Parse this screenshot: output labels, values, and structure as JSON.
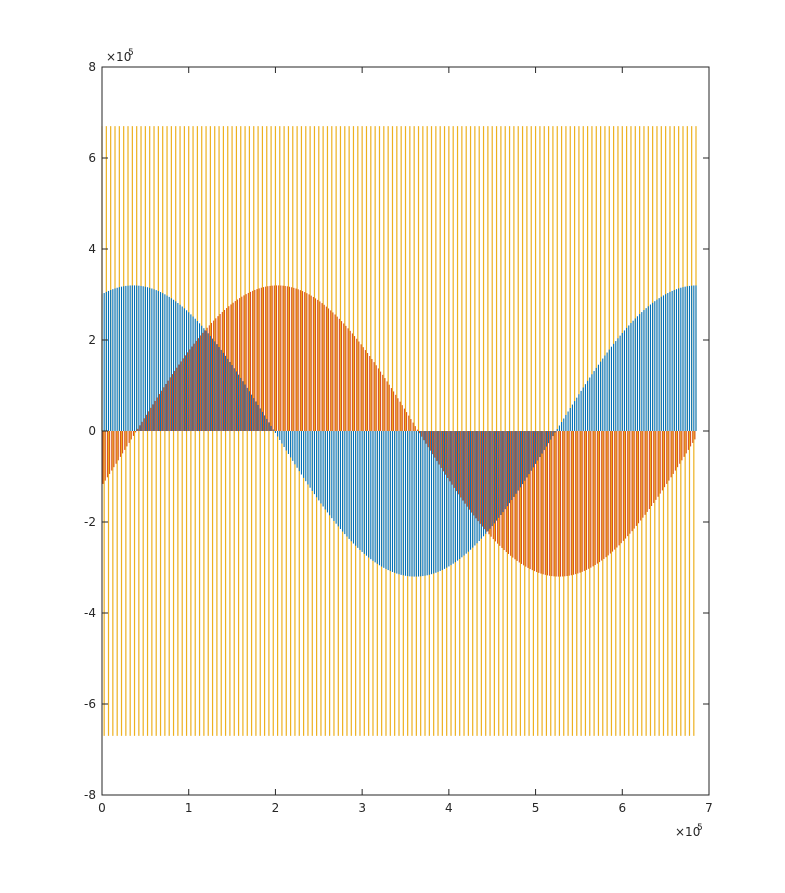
{
  "chart_data": {
    "type": "bar",
    "title": "",
    "xlabel": "",
    "ylabel": "",
    "xlim": [
      0,
      700000
    ],
    "ylim": [
      -800000,
      800000
    ],
    "x_ticks": [
      0,
      100000,
      200000,
      300000,
      400000,
      500000,
      600000,
      700000
    ],
    "x_tick_labels": [
      "0",
      "1",
      "2",
      "3",
      "4",
      "5",
      "6",
      "7"
    ],
    "y_ticks": [
      -800000,
      -600000,
      -400000,
      -200000,
      0,
      200000,
      400000,
      600000,
      800000
    ],
    "y_tick_labels": [
      "-8",
      "-6",
      "-4",
      "-2",
      "0",
      "2",
      "4",
      "6",
      "8"
    ],
    "x_exponent": {
      "base": "×10",
      "power": "5"
    },
    "y_exponent": {
      "base": "×10",
      "power": "5"
    },
    "x_range_of_data": [
      0,
      685000
    ],
    "bar_spacing": 2500,
    "grid": false,
    "legend": "none",
    "series": [
      {
        "color": "#EDB120",
        "description_pattern": "square wave alternating",
        "amplitude": 670000,
        "kind": "alternating"
      },
      {
        "color": "#0072BD",
        "amplitude": 320000,
        "period": 650000,
        "phase_deg": 70,
        "kind": "sine"
      },
      {
        "color": "#D95319",
        "amplitude": 320000,
        "period": 650000,
        "phase_deg": -22,
        "kind": "sine"
      }
    ]
  },
  "colors": {
    "axes": "#262626",
    "background": "#ffffff",
    "yellow": "#EDB120",
    "blue": "#0072BD",
    "orange": "#D95319"
  }
}
